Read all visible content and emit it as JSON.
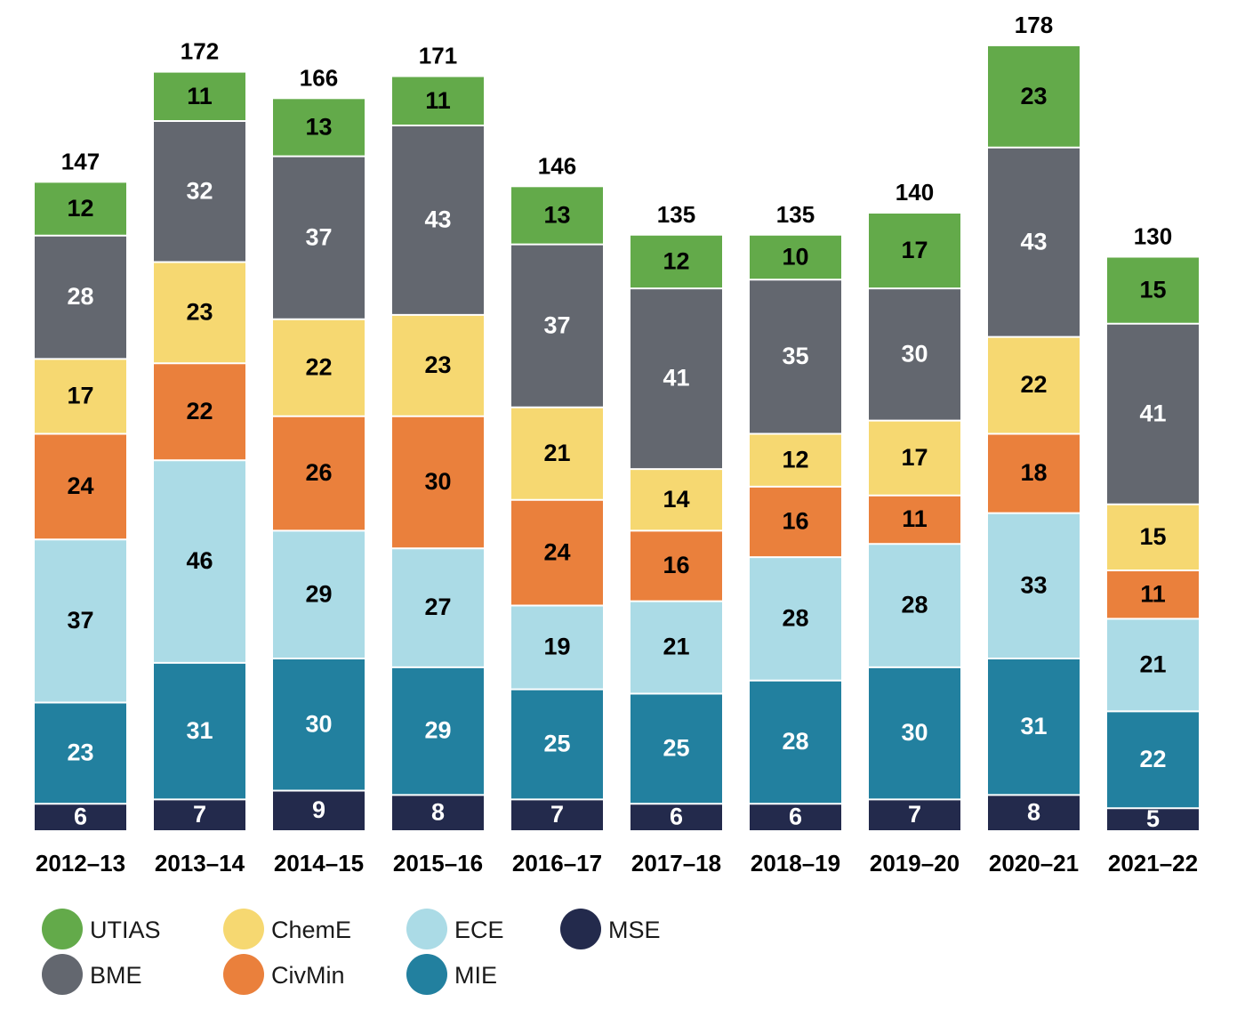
{
  "chart_data": {
    "type": "bar",
    "stacked": true,
    "categories": [
      "2012–13",
      "2013–14",
      "2014–15",
      "2015–16",
      "2016–17",
      "2017–18",
      "2018–19",
      "2019–20",
      "2020–21",
      "2021–22"
    ],
    "totals": [
      "147",
      "172",
      "166",
      "171",
      "146",
      "135",
      "135",
      "140",
      "178",
      "130"
    ],
    "series": [
      {
        "name": "MSE",
        "color": "#232a4c",
        "label_color": "#ffffff",
        "values": [
          6,
          7,
          9,
          8,
          7,
          6,
          6,
          7,
          8,
          5
        ]
      },
      {
        "name": "MIE",
        "color": "#22809f",
        "label_color": "#ffffff",
        "values": [
          23,
          31,
          30,
          29,
          25,
          25,
          28,
          30,
          31,
          22
        ]
      },
      {
        "name": "ECE",
        "color": "#abdbe6",
        "label_color": "#000000",
        "values": [
          37,
          46,
          29,
          27,
          19,
          21,
          28,
          28,
          33,
          21
        ]
      },
      {
        "name": "CivMin",
        "color": "#ea803c",
        "label_color": "#000000",
        "values": [
          24,
          22,
          26,
          30,
          24,
          16,
          16,
          11,
          18,
          11
        ]
      },
      {
        "name": "ChemE",
        "color": "#f6d871",
        "label_color": "#000000",
        "values": [
          17,
          23,
          22,
          23,
          21,
          14,
          12,
          17,
          22,
          15
        ]
      },
      {
        "name": "BME",
        "color": "#63676f",
        "label_color": "#ffffff",
        "values": [
          28,
          32,
          37,
          43,
          37,
          41,
          35,
          30,
          43,
          41
        ]
      },
      {
        "name": "UTIAS",
        "color": "#63aa4a",
        "label_color": "#000000",
        "values": [
          12,
          11,
          13,
          11,
          13,
          12,
          10,
          17,
          23,
          15
        ]
      }
    ],
    "legend": {
      "placement": "bottom",
      "columns": [
        [
          "UTIAS",
          "BME"
        ],
        [
          "ChemE",
          "CivMin"
        ],
        [
          "ECE",
          "MIE"
        ],
        [
          "MSE"
        ]
      ]
    },
    "ylim": [
      0,
      180
    ],
    "title": "",
    "xlabel": "",
    "ylabel": "",
    "grid": false
  }
}
